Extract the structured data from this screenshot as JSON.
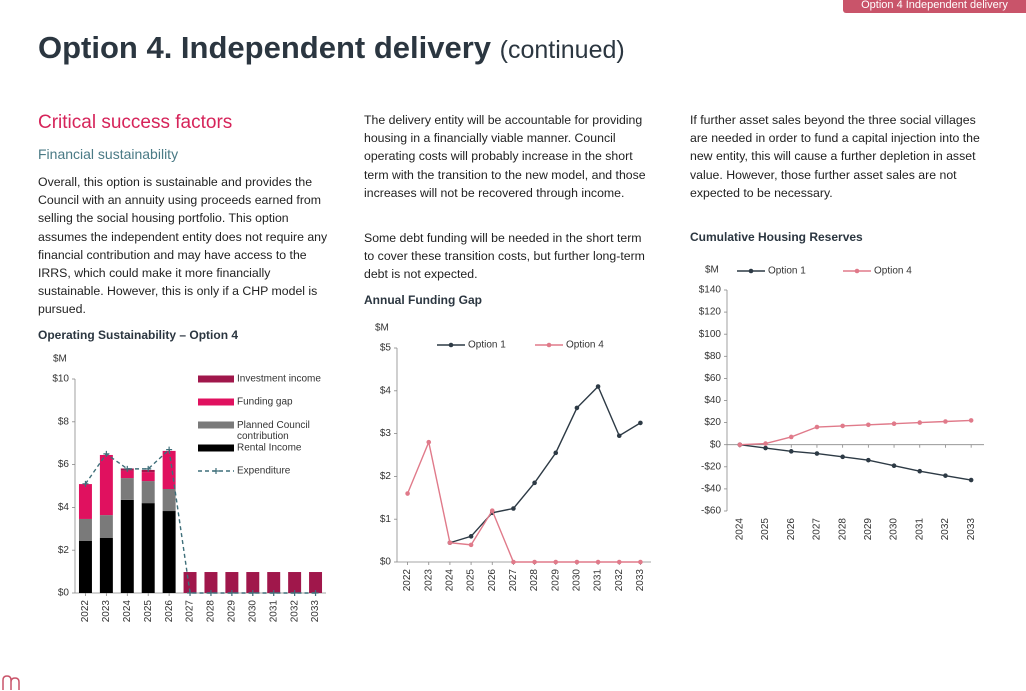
{
  "header": {
    "tag": "Option 4 Independent delivery",
    "title": "Option 4. Independent delivery",
    "title_suffix": "(continued)"
  },
  "section": {
    "heading": "Critical success factors",
    "subheading": "Financial sustainability"
  },
  "paragraphs": [
    "Overall, this option is sustainable and provides the Council with an annuity using proceeds earned from selling the social housing portfolio. This option assumes the independent entity does not require any financial contribution and may have access to the IRRS, which could make it more financially sustainable. However, this is only if a CHP model is pursued.",
    "The delivery entity will be accountable for providing housing in a financially viable manner. Council operating costs will probably increase in the short term with the transition to the new model, and those increases will not be recovered through income.",
    "Some debt funding will be needed in the short term to cover these transition costs, but further long-term debt is not expected.",
    "If further asset sales beyond the three social villages are needed in order to fund a capital injection into the new entity, this will cause a further depletion in asset value. However, those further asset sales are not expected to be necessary."
  ],
  "chart_data": [
    {
      "type": "bar",
      "stacked": true,
      "title": "Operating Sustainability – Option 4",
      "y_label": "$M",
      "legend": "right",
      "categories": [
        "2022",
        "2023",
        "2024",
        "2025",
        "2026",
        "2027",
        "2028",
        "2029",
        "2030",
        "2031",
        "2032",
        "2033"
      ],
      "ylim": [
        0,
        10
      ],
      "yticks": [
        {
          "value": 0,
          "label": "$0"
        },
        {
          "value": 2,
          "label": "$2"
        },
        {
          "value": 4,
          "label": "$4"
        },
        {
          "value": 6,
          "label": "$6"
        },
        {
          "value": 8,
          "label": "$8"
        },
        {
          "value": 10,
          "label": "$10"
        }
      ],
      "series": [
        {
          "name": "Rental Income",
          "color": "#000000",
          "values": [
            2.43,
            2.57,
            4.35,
            4.2,
            3.83,
            0,
            0,
            0,
            0,
            0,
            0,
            0
          ]
        },
        {
          "name": "Planned Council contribution",
          "color": "#7a7a7a",
          "values": [
            1.03,
            1.07,
            1.02,
            1.03,
            1.03,
            0,
            0,
            0,
            0,
            0,
            0,
            0
          ]
        },
        {
          "name": "Funding gap",
          "color": "#e0115f",
          "values": [
            1.63,
            2.81,
            0.35,
            0.42,
            1.78,
            0,
            0,
            0,
            0,
            0,
            0,
            0
          ]
        },
        {
          "name": "Investment income",
          "color": "#a0174b",
          "values": [
            0,
            0,
            0.1,
            0.1,
            0,
            0.98,
            0.98,
            0.98,
            0.98,
            0.98,
            0.98,
            0.98
          ]
        },
        {
          "name": "Expenditure",
          "color": "#3f6f7a",
          "kind": "line",
          "dashed": true,
          "marker": "plus",
          "values": [
            5.1,
            6.5,
            5.8,
            5.8,
            6.7,
            0,
            0,
            0,
            0,
            0,
            0,
            0
          ]
        }
      ]
    },
    {
      "type": "line",
      "title": "Annual Funding Gap",
      "y_label": "$M",
      "legend": "top",
      "categories": [
        "2022",
        "2023",
        "2024",
        "2025",
        "2026",
        "2027",
        "2028",
        "2029",
        "2030",
        "2031",
        "2032",
        "2033"
      ],
      "ylim": [
        0,
        5
      ],
      "yticks": [
        {
          "value": 0,
          "label": "$0"
        },
        {
          "value": 1,
          "label": "$1"
        },
        {
          "value": 2,
          "label": "$2"
        },
        {
          "value": 3,
          "label": "$3"
        },
        {
          "value": 4,
          "label": "$4"
        },
        {
          "value": 5,
          "label": "$5"
        }
      ],
      "series": [
        {
          "name": "Option 1",
          "color": "#2d3a45",
          "marker": "circle",
          "values": [
            null,
            null,
            0.45,
            0.6,
            1.15,
            1.25,
            1.85,
            2.55,
            3.6,
            4.1,
            2.95,
            3.25
          ]
        },
        {
          "name": "Option 4",
          "color": "#e07a8a",
          "marker": "circle",
          "values": [
            1.6,
            2.8,
            0.45,
            0.4,
            1.2,
            0,
            0,
            0,
            0,
            0,
            0,
            0
          ]
        }
      ]
    },
    {
      "type": "line",
      "title": "Cumulative Housing Reserves",
      "y_label": "$M",
      "legend": "top",
      "categories": [
        "2024",
        "2025",
        "2026",
        "2027",
        "2028",
        "2029",
        "2030",
        "2031",
        "2032",
        "2033"
      ],
      "ylim": [
        -60,
        140
      ],
      "yticks": [
        {
          "value": -60,
          "label": "-$60"
        },
        {
          "value": -40,
          "label": "-$40"
        },
        {
          "value": -20,
          "label": "-$20"
        },
        {
          "value": 0,
          "label": "$0"
        },
        {
          "value": 20,
          "label": "$20"
        },
        {
          "value": 40,
          "label": "$40"
        },
        {
          "value": 60,
          "label": "$60"
        },
        {
          "value": 80,
          "label": "$80"
        },
        {
          "value": 100,
          "label": "$100"
        },
        {
          "value": 120,
          "label": "$120"
        },
        {
          "value": 140,
          "label": "$140"
        }
      ],
      "series": [
        {
          "name": "Option 1",
          "color": "#2d3a45",
          "marker": "circle",
          "values": [
            0,
            -3,
            -6,
            -8,
            -11,
            -14,
            -19,
            -24,
            -28,
            -32
          ]
        },
        {
          "name": "Option 4",
          "color": "#e07a8a",
          "marker": "circle",
          "values": [
            0,
            1,
            7,
            16,
            17,
            18,
            19,
            20,
            21,
            22
          ]
        }
      ]
    }
  ]
}
